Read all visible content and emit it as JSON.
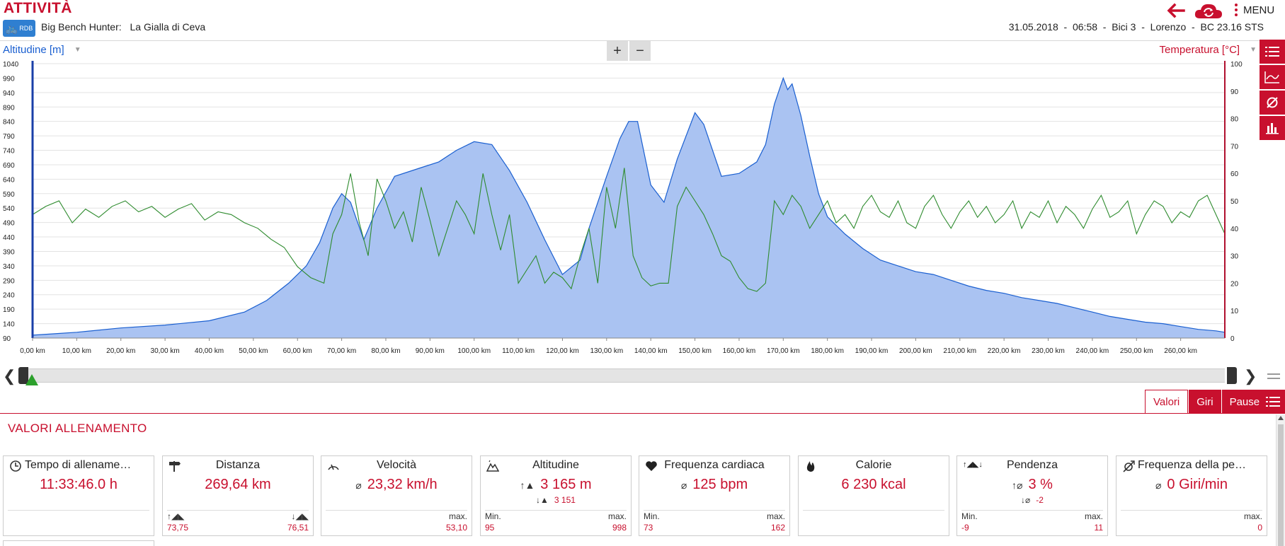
{
  "header": {
    "app_title": "ATTIVITÀ",
    "logo_text": "RDB",
    "activity_label": "Big Bench Hunter:",
    "activity_name": "La Gialla di Ceva",
    "meta": "31.05.2018  -  06:58  -  Bici 3  -  Lorenzo  -  BC 23.16 STS",
    "menu_label": "MENU"
  },
  "chart_toolbar": {
    "left_axis_label": "Altitudine [m]",
    "right_axis_label": "Temperatura [°C]",
    "zoom_in_label": "+",
    "zoom_out_label": "−"
  },
  "chart_data": {
    "type": "area",
    "x_unit": "km",
    "xlim": [
      0,
      270
    ],
    "x_ticks": [
      "0,00 km",
      "10,00 km",
      "20,00 km",
      "30,00 km",
      "40,00 km",
      "50,00 km",
      "60,00 km",
      "70,00 km",
      "80,00 km",
      "90,00 km",
      "100,00 km",
      "110,00 km",
      "120,00 km",
      "130,00 km",
      "140,00 km",
      "150,00 km",
      "160,00 km",
      "170,00 km",
      "180,00 km",
      "190,00 km",
      "200,00 km",
      "210,00 km",
      "220,00 km",
      "230,00 km",
      "240,00 km",
      "250,00 km",
      "260,00 km"
    ],
    "y_left": {
      "label": "Altitudine [m]",
      "lim": [
        90,
        1040
      ],
      "ticks": [
        90,
        140,
        190,
        240,
        290,
        340,
        390,
        440,
        490,
        540,
        590,
        640,
        690,
        740,
        790,
        840,
        890,
        940,
        990,
        1040
      ]
    },
    "y_right": {
      "label": "Temperatura [°C]",
      "lim": [
        0,
        100
      ],
      "ticks": [
        0,
        10,
        20,
        30,
        40,
        50,
        60,
        70,
        80,
        90,
        100
      ]
    },
    "grid": true,
    "series": [
      {
        "name": "Altitudine [m]",
        "axis": "left",
        "color": "#1a5fd0",
        "fill": "#aac3f2",
        "points": [
          [
            0,
            100
          ],
          [
            5,
            105
          ],
          [
            10,
            110
          ],
          [
            20,
            125
          ],
          [
            30,
            135
          ],
          [
            40,
            150
          ],
          [
            48,
            180
          ],
          [
            53,
            220
          ],
          [
            58,
            280
          ],
          [
            62,
            340
          ],
          [
            65,
            420
          ],
          [
            68,
            540
          ],
          [
            70,
            590
          ],
          [
            72,
            560
          ],
          [
            75,
            430
          ],
          [
            78,
            540
          ],
          [
            82,
            650
          ],
          [
            88,
            680
          ],
          [
            92,
            700
          ],
          [
            96,
            740
          ],
          [
            100,
            770
          ],
          [
            104,
            760
          ],
          [
            108,
            670
          ],
          [
            112,
            560
          ],
          [
            116,
            430
          ],
          [
            120,
            310
          ],
          [
            124,
            360
          ],
          [
            126,
            470
          ],
          [
            130,
            650
          ],
          [
            133,
            780
          ],
          [
            135,
            840
          ],
          [
            137,
            840
          ],
          [
            140,
            620
          ],
          [
            143,
            560
          ],
          [
            146,
            710
          ],
          [
            150,
            870
          ],
          [
            152,
            830
          ],
          [
            156,
            650
          ],
          [
            160,
            660
          ],
          [
            164,
            700
          ],
          [
            166,
            760
          ],
          [
            168,
            900
          ],
          [
            170,
            990
          ],
          [
            171,
            950
          ],
          [
            172,
            970
          ],
          [
            174,
            860
          ],
          [
            176,
            720
          ],
          [
            178,
            590
          ],
          [
            180,
            510
          ],
          [
            184,
            450
          ],
          [
            188,
            400
          ],
          [
            192,
            360
          ],
          [
            196,
            340
          ],
          [
            200,
            320
          ],
          [
            204,
            310
          ],
          [
            208,
            290
          ],
          [
            212,
            270
          ],
          [
            216,
            255
          ],
          [
            220,
            245
          ],
          [
            224,
            230
          ],
          [
            228,
            220
          ],
          [
            232,
            210
          ],
          [
            236,
            195
          ],
          [
            240,
            180
          ],
          [
            244,
            165
          ],
          [
            248,
            155
          ],
          [
            252,
            145
          ],
          [
            256,
            140
          ],
          [
            260,
            130
          ],
          [
            264,
            120
          ],
          [
            268,
            115
          ],
          [
            270,
            110
          ]
        ]
      },
      {
        "name": "Temperatura [°C]",
        "axis": "right",
        "color": "#2e8b2e",
        "points": [
          [
            0,
            45
          ],
          [
            3,
            48
          ],
          [
            6,
            50
          ],
          [
            9,
            42
          ],
          [
            12,
            47
          ],
          [
            15,
            44
          ],
          [
            18,
            48
          ],
          [
            21,
            50
          ],
          [
            24,
            46
          ],
          [
            27,
            48
          ],
          [
            30,
            44
          ],
          [
            33,
            47
          ],
          [
            36,
            49
          ],
          [
            39,
            43
          ],
          [
            42,
            46
          ],
          [
            45,
            45
          ],
          [
            48,
            42
          ],
          [
            51,
            40
          ],
          [
            54,
            36
          ],
          [
            57,
            33
          ],
          [
            60,
            26
          ],
          [
            63,
            22
          ],
          [
            66,
            20
          ],
          [
            68,
            38
          ],
          [
            70,
            45
          ],
          [
            72,
            60
          ],
          [
            74,
            42
          ],
          [
            76,
            30
          ],
          [
            78,
            58
          ],
          [
            80,
            50
          ],
          [
            82,
            40
          ],
          [
            84,
            46
          ],
          [
            86,
            35
          ],
          [
            88,
            55
          ],
          [
            90,
            43
          ],
          [
            92,
            30
          ],
          [
            94,
            40
          ],
          [
            96,
            50
          ],
          [
            98,
            45
          ],
          [
            100,
            38
          ],
          [
            102,
            60
          ],
          [
            104,
            45
          ],
          [
            106,
            32
          ],
          [
            108,
            45
          ],
          [
            110,
            20
          ],
          [
            112,
            25
          ],
          [
            114,
            30
          ],
          [
            116,
            20
          ],
          [
            118,
            24
          ],
          [
            120,
            22
          ],
          [
            122,
            18
          ],
          [
            124,
            30
          ],
          [
            126,
            40
          ],
          [
            128,
            20
          ],
          [
            130,
            55
          ],
          [
            132,
            40
          ],
          [
            134,
            62
          ],
          [
            136,
            30
          ],
          [
            138,
            22
          ],
          [
            140,
            19
          ],
          [
            142,
            20
          ],
          [
            144,
            20
          ],
          [
            146,
            48
          ],
          [
            148,
            55
          ],
          [
            150,
            50
          ],
          [
            152,
            45
          ],
          [
            154,
            38
          ],
          [
            156,
            30
          ],
          [
            158,
            28
          ],
          [
            160,
            22
          ],
          [
            162,
            18
          ],
          [
            164,
            17
          ],
          [
            166,
            20
          ],
          [
            168,
            50
          ],
          [
            170,
            45
          ],
          [
            172,
            52
          ],
          [
            174,
            48
          ],
          [
            176,
            40
          ],
          [
            178,
            45
          ],
          [
            180,
            50
          ],
          [
            182,
            42
          ],
          [
            184,
            45
          ],
          [
            186,
            40
          ],
          [
            188,
            48
          ],
          [
            190,
            52
          ],
          [
            192,
            46
          ],
          [
            194,
            44
          ],
          [
            196,
            50
          ],
          [
            198,
            42
          ],
          [
            200,
            40
          ],
          [
            202,
            48
          ],
          [
            204,
            52
          ],
          [
            206,
            45
          ],
          [
            208,
            40
          ],
          [
            210,
            46
          ],
          [
            212,
            50
          ],
          [
            214,
            44
          ],
          [
            216,
            48
          ],
          [
            218,
            42
          ],
          [
            220,
            45
          ],
          [
            222,
            50
          ],
          [
            224,
            40
          ],
          [
            226,
            46
          ],
          [
            228,
            44
          ],
          [
            230,
            50
          ],
          [
            232,
            42
          ],
          [
            234,
            48
          ],
          [
            236,
            45
          ],
          [
            238,
            40
          ],
          [
            240,
            47
          ],
          [
            242,
            52
          ],
          [
            244,
            44
          ],
          [
            246,
            46
          ],
          [
            248,
            50
          ],
          [
            250,
            38
          ],
          [
            252,
            45
          ],
          [
            254,
            50
          ],
          [
            256,
            48
          ],
          [
            258,
            42
          ],
          [
            260,
            46
          ],
          [
            262,
            44
          ],
          [
            264,
            50
          ],
          [
            266,
            52
          ],
          [
            268,
            45
          ],
          [
            270,
            38
          ]
        ]
      }
    ]
  },
  "tabs": [
    "Valori",
    "Giri",
    "Pause"
  ],
  "section_title": "VALORI ALLENAMENTO",
  "cards": [
    {
      "title": "Tempo di allenamento",
      "main": "11:33:46.0 h"
    },
    {
      "title": "Distanza",
      "main": "269,64 km",
      "bl_val": "73,75",
      "br_val": "76,51"
    },
    {
      "title": "Velocità",
      "main_prefix": "⌀",
      "main": "23,32 km/h",
      "br_label": "max.",
      "br_val": "53,10"
    },
    {
      "title": "Altitudine",
      "main_prefix": "↑▲",
      "main": "3 165 m",
      "sub_prefix": "↓▲",
      "sub": "3 151",
      "bl_label": "Min.",
      "bl_val": "95",
      "br_label": "max.",
      "br_val": "998"
    },
    {
      "title": "Frequenza cardiaca",
      "main_prefix": "⌀",
      "main": "125 bpm",
      "bl_label": "Min.",
      "bl_val": "73",
      "br_label": "max.",
      "br_val": "162"
    },
    {
      "title": "Calorie",
      "main": "6 230 kcal"
    },
    {
      "title": "Pendenza",
      "main_prefix": "↑⌀",
      "main": "3 %",
      "sub_prefix": "↓⌀",
      "sub": "-2",
      "bl_label": "Min.",
      "bl_val": "-9",
      "br_label": "max.",
      "br_val": "11"
    },
    {
      "title": "Frequenza della ped...",
      "main_prefix": "⌀",
      "main": "0 Giri/min",
      "br_label": "max.",
      "br_val": "0"
    }
  ]
}
